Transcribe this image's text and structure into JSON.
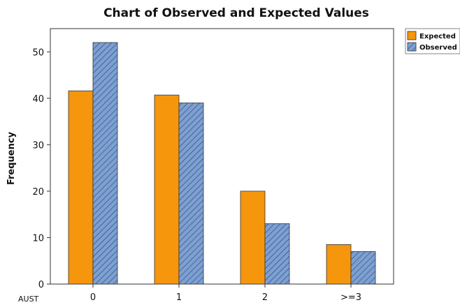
{
  "chart_data": {
    "type": "bar",
    "title": "Chart of Observed and Expected Values",
    "xlabel": "AUST",
    "ylabel": "Frequency",
    "categories": [
      "0",
      "1",
      "2",
      ">=3"
    ],
    "series": [
      {
        "name": "Expected",
        "values": [
          41.6,
          40.7,
          20.0,
          8.5
        ],
        "color": "#f5960c",
        "pattern": "solid"
      },
      {
        "name": "Observed",
        "values": [
          52,
          39,
          13,
          7
        ],
        "color": "#7ca0d4",
        "pattern": "hatch"
      }
    ],
    "ylim": [
      0,
      55
    ],
    "yticks": [
      0,
      10,
      20,
      30,
      40,
      50
    ],
    "grid": false,
    "legend": "top-right"
  }
}
